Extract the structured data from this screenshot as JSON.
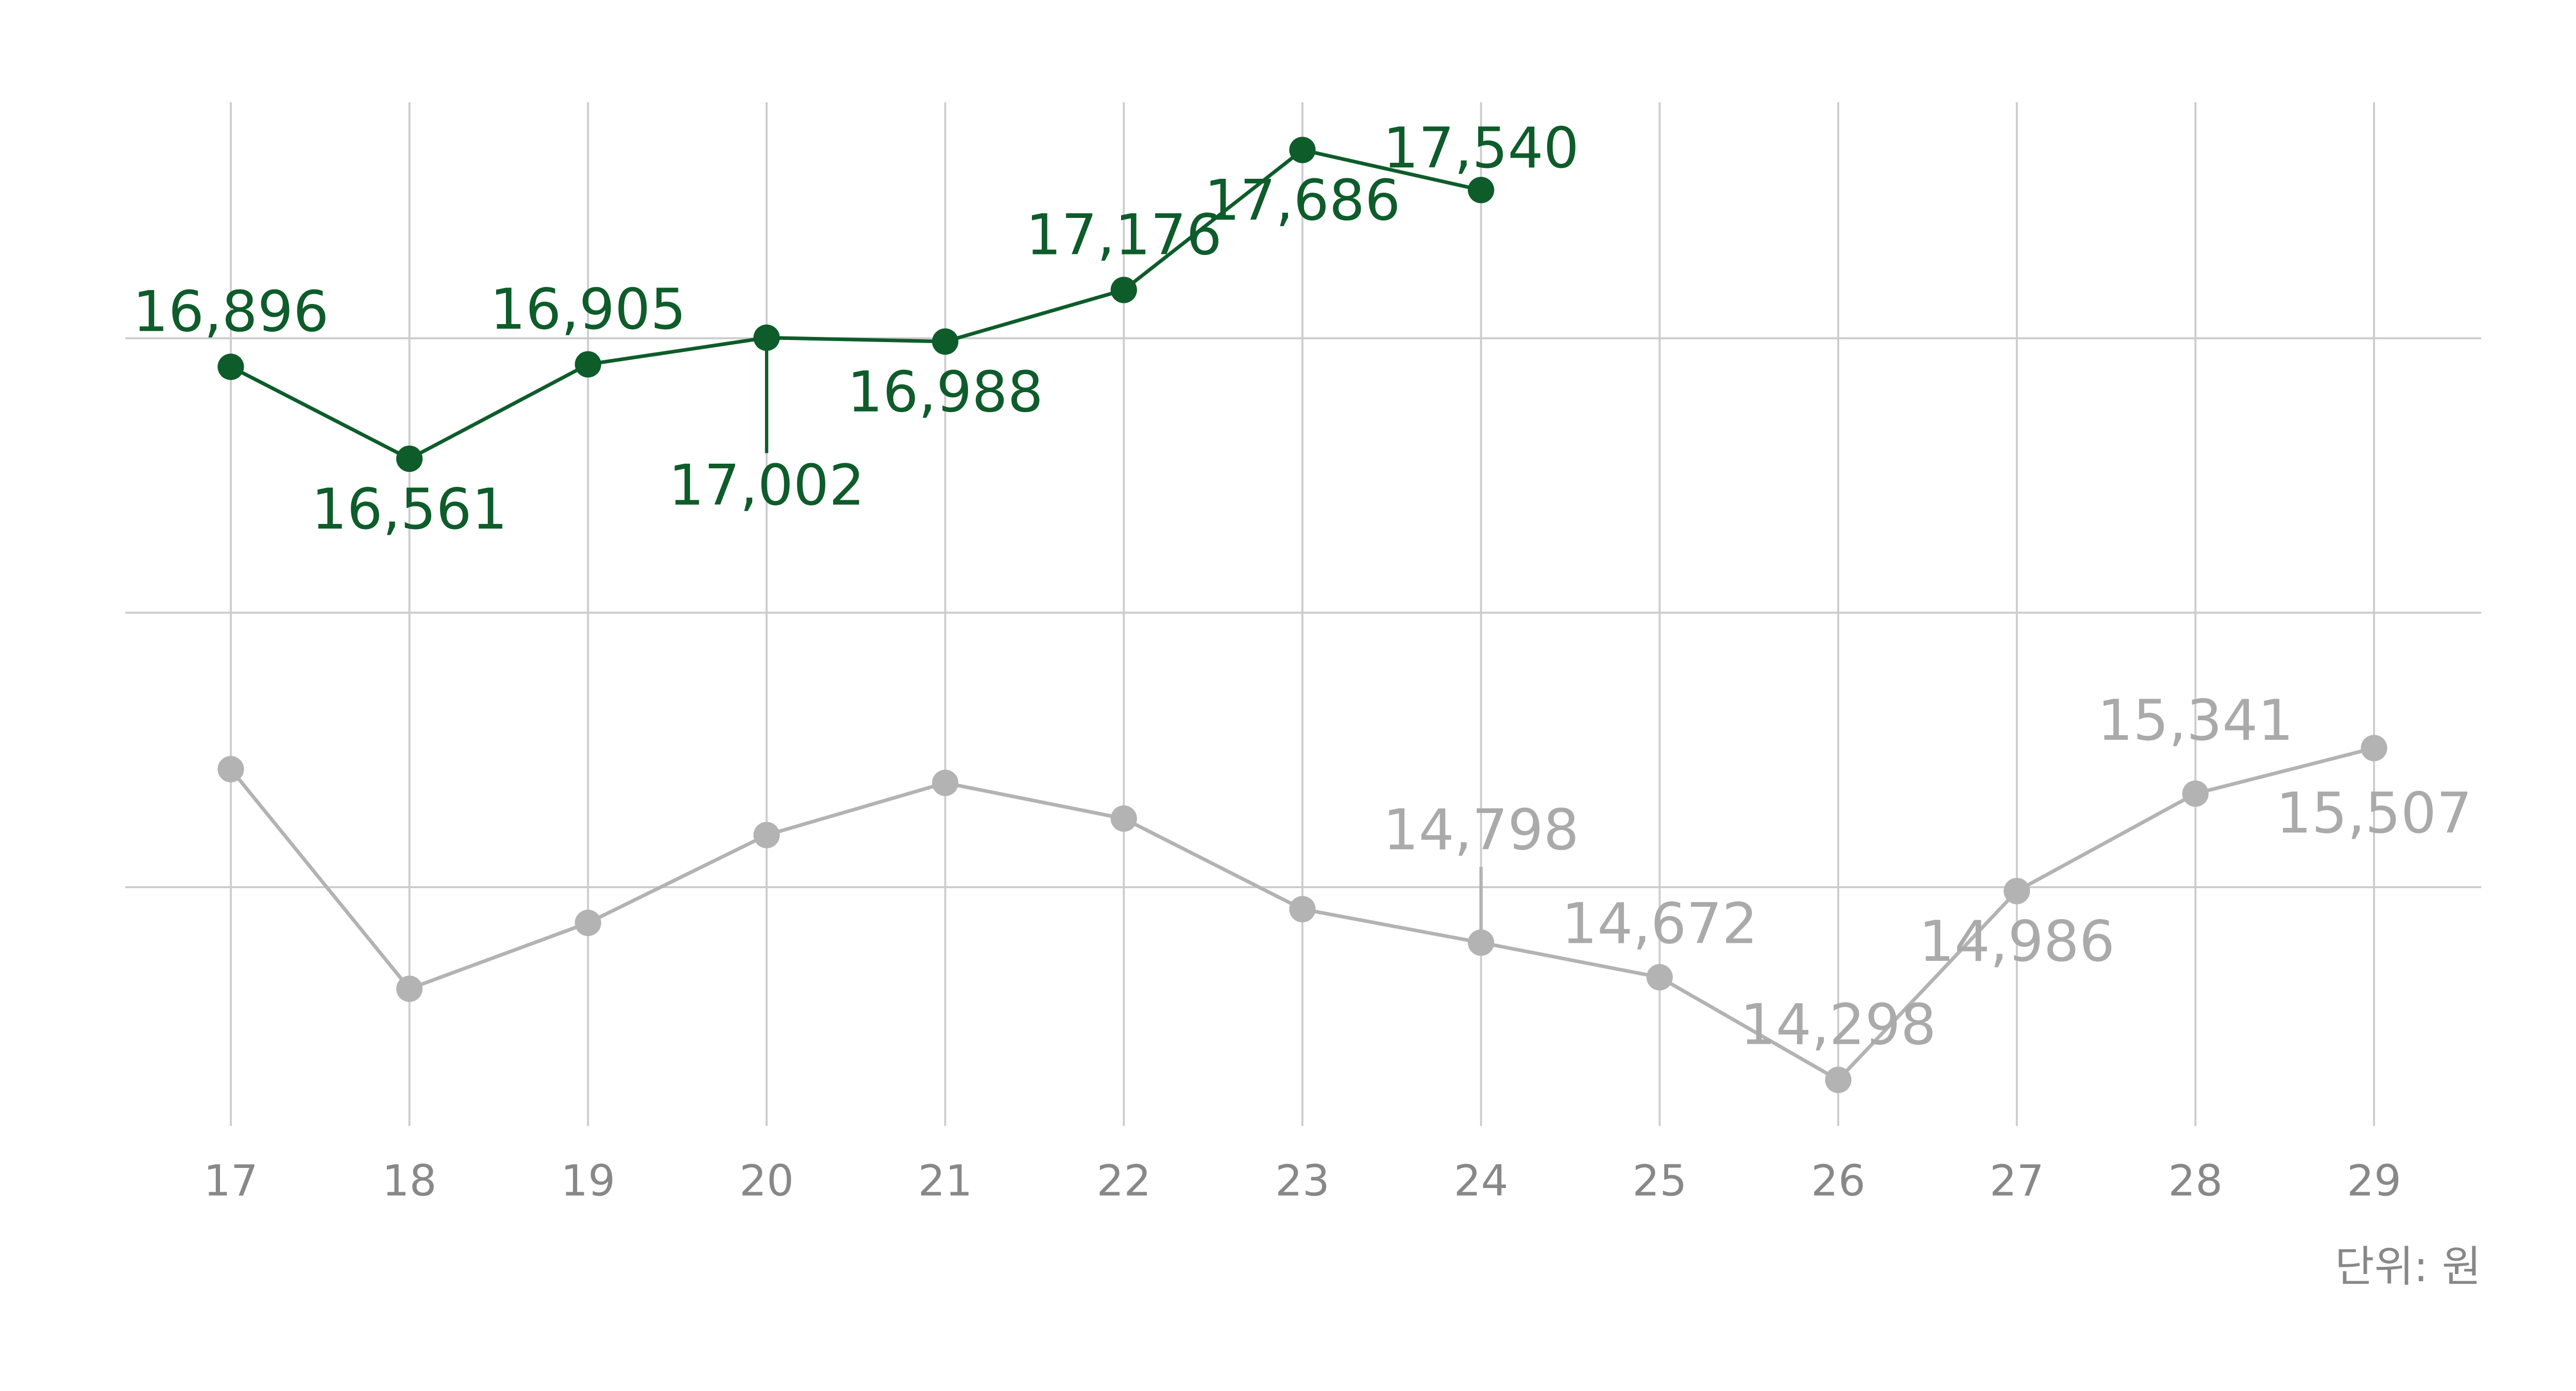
{
  "chart_data": {
    "type": "line",
    "categories": [
      "17",
      "18",
      "19",
      "20",
      "21",
      "22",
      "23",
      "24",
      "25",
      "26",
      "27",
      "28",
      "29"
    ],
    "series": [
      {
        "color": "#0d5c2a",
        "values": [
          16896,
          16561,
          16905,
          17002,
          16988,
          17176,
          17686,
          17540,
          null,
          null,
          null,
          null,
          null
        ],
        "value_labels": [
          "16,896",
          "16,561",
          "16,905",
          "17,002",
          "16,988",
          "17,176",
          "17,686",
          "17,540",
          null,
          null,
          null,
          null,
          null
        ]
      },
      {
        "color": "#b3b3b3",
        "values": [
          15430,
          14630,
          14870,
          15190,
          15380,
          15250,
          14920,
          14798,
          14672,
          14298,
          14986,
          15341,
          15507
        ],
        "value_labels": [
          null,
          null,
          null,
          null,
          null,
          null,
          null,
          "14,798",
          "14,672",
          "14,298",
          "14,986",
          "15,341",
          "15,507"
        ]
      }
    ],
    "ylim": [
      14130,
      17860
    ],
    "yticks": [
      15000,
      16000,
      17000
    ],
    "grid": true,
    "unit_note": "단위: 원"
  }
}
